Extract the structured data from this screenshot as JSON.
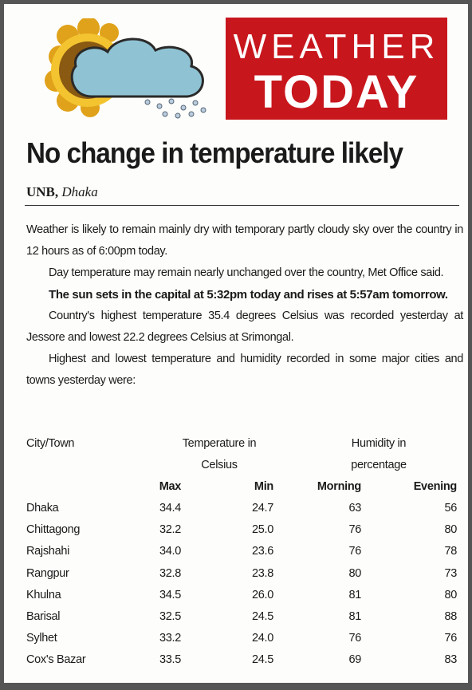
{
  "header": {
    "line1": "WEATHER",
    "line2": "TODAY"
  },
  "title": "No change in temperature likely",
  "byline": {
    "agency": "UNB,",
    "place": "Dhaka"
  },
  "paragraphs": [
    "Weather is likely to remain mainly dry with temporary partly cloudy sky over the country in 12 hours as of 6:00pm today.",
    "Day temperature may remain nearly unchanged over the country, Met Office said.",
    "The sun sets in the capital at 5:32pm today and rises at 5:57am tomorrow.",
    "Country's highest temperature 35.4 degrees Celsius was recorded yesterday at Jessore and lowest 22.2 degrees Celsius at Srimongal.",
    "Highest and lowest temperature and humidity recorded in some major cities and towns yesterday were:"
  ],
  "table": {
    "group_headers": [
      "City/Town",
      "Temperature in Celsius",
      "Humidity in percentage"
    ],
    "columns": [
      "Max",
      "Min",
      "Morning",
      "Evening"
    ],
    "rows": [
      [
        "Dhaka",
        "34.4",
        "24.7",
        "63",
        "56"
      ],
      [
        "Chittagong",
        "32.2",
        "25.0",
        "76",
        "80"
      ],
      [
        "Rajshahi",
        "34.0",
        "23.6",
        "76",
        "78"
      ],
      [
        "Rangpur",
        "32.8",
        "23.8",
        "80",
        "73"
      ],
      [
        "Khulna",
        "34.5",
        "26.0",
        "81",
        "80"
      ],
      [
        "Barisal",
        "32.5",
        "24.5",
        "81",
        "88"
      ],
      [
        "Sylhet",
        "33.2",
        "24.0",
        "76",
        "76"
      ],
      [
        "Cox's Bazar",
        "33.5",
        "24.5",
        "69",
        "83"
      ]
    ]
  }
}
